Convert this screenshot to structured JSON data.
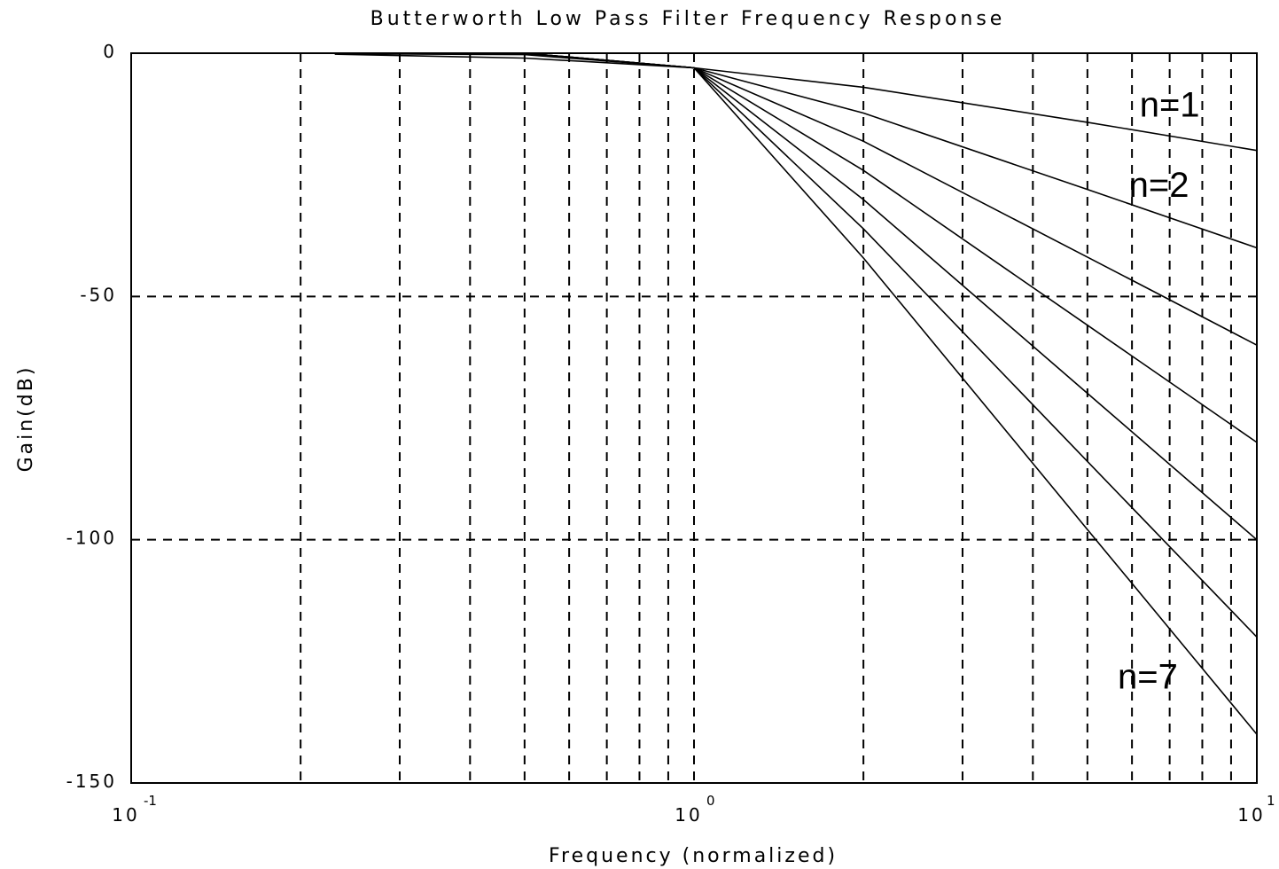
{
  "chart_data": {
    "type": "line",
    "title": "Butterworth Low Pass Filter Frequency Response",
    "xlabel": "Frequency (normalized)",
    "ylabel": "Gain(dB)",
    "x_scale": "log",
    "xlim": [
      0.1,
      10
    ],
    "ylim": [
      -150,
      0
    ],
    "grid": true,
    "x_ticks": [
      {
        "base": "10",
        "exp": "-1",
        "value": 0.1
      },
      {
        "base": "10",
        "exp": "0",
        "value": 1
      },
      {
        "base": "10",
        "exp": "1",
        "value": 10
      }
    ],
    "y_ticks": [
      {
        "label": "0",
        "value": 0
      },
      {
        "label": "-50",
        "value": -50
      },
      {
        "label": "-100",
        "value": -100
      },
      {
        "label": "-150",
        "value": -150
      }
    ],
    "series": [
      {
        "order": 1,
        "x": [
          0.23,
          0.5,
          1,
          2,
          5,
          10
        ],
        "y": [
          -0.2,
          -1,
          -3,
          -7,
          -14.2,
          -20
        ]
      },
      {
        "order": 2,
        "x": [
          0.23,
          0.5,
          1,
          2,
          5,
          10
        ],
        "y": [
          -0.1,
          -0.3,
          -3,
          -12.3,
          -28,
          -40
        ]
      },
      {
        "order": 3,
        "x": [
          0.23,
          0.5,
          1,
          2,
          5,
          10
        ],
        "y": [
          0,
          -0.1,
          -3,
          -18.1,
          -41.9,
          -60
        ]
      },
      {
        "order": 4,
        "x": [
          0.23,
          0.5,
          1,
          2,
          5,
          10
        ],
        "y": [
          0,
          0,
          -3,
          -24.1,
          -55.9,
          -80
        ]
      },
      {
        "order": 5,
        "x": [
          0.23,
          0.5,
          1,
          2,
          5,
          10
        ],
        "y": [
          0,
          0,
          -3,
          -30.1,
          -69.9,
          -100
        ]
      },
      {
        "order": 6,
        "x": [
          0.23,
          0.5,
          1,
          2,
          5,
          10
        ],
        "y": [
          0,
          0,
          -3,
          -36.1,
          -83.9,
          -120
        ]
      },
      {
        "order": 7,
        "x": [
          0.23,
          0.5,
          1,
          2,
          5,
          10
        ],
        "y": [
          0,
          0,
          -3,
          -42.1,
          -97.9,
          -140
        ]
      }
    ],
    "annotations": [
      {
        "text": "n=1",
        "x": 7.0,
        "y": -10.5
      },
      {
        "text": "n=2",
        "x": 6.7,
        "y": -27
      },
      {
        "text": "n=7",
        "x": 6.4,
        "y": -128
      }
    ]
  }
}
